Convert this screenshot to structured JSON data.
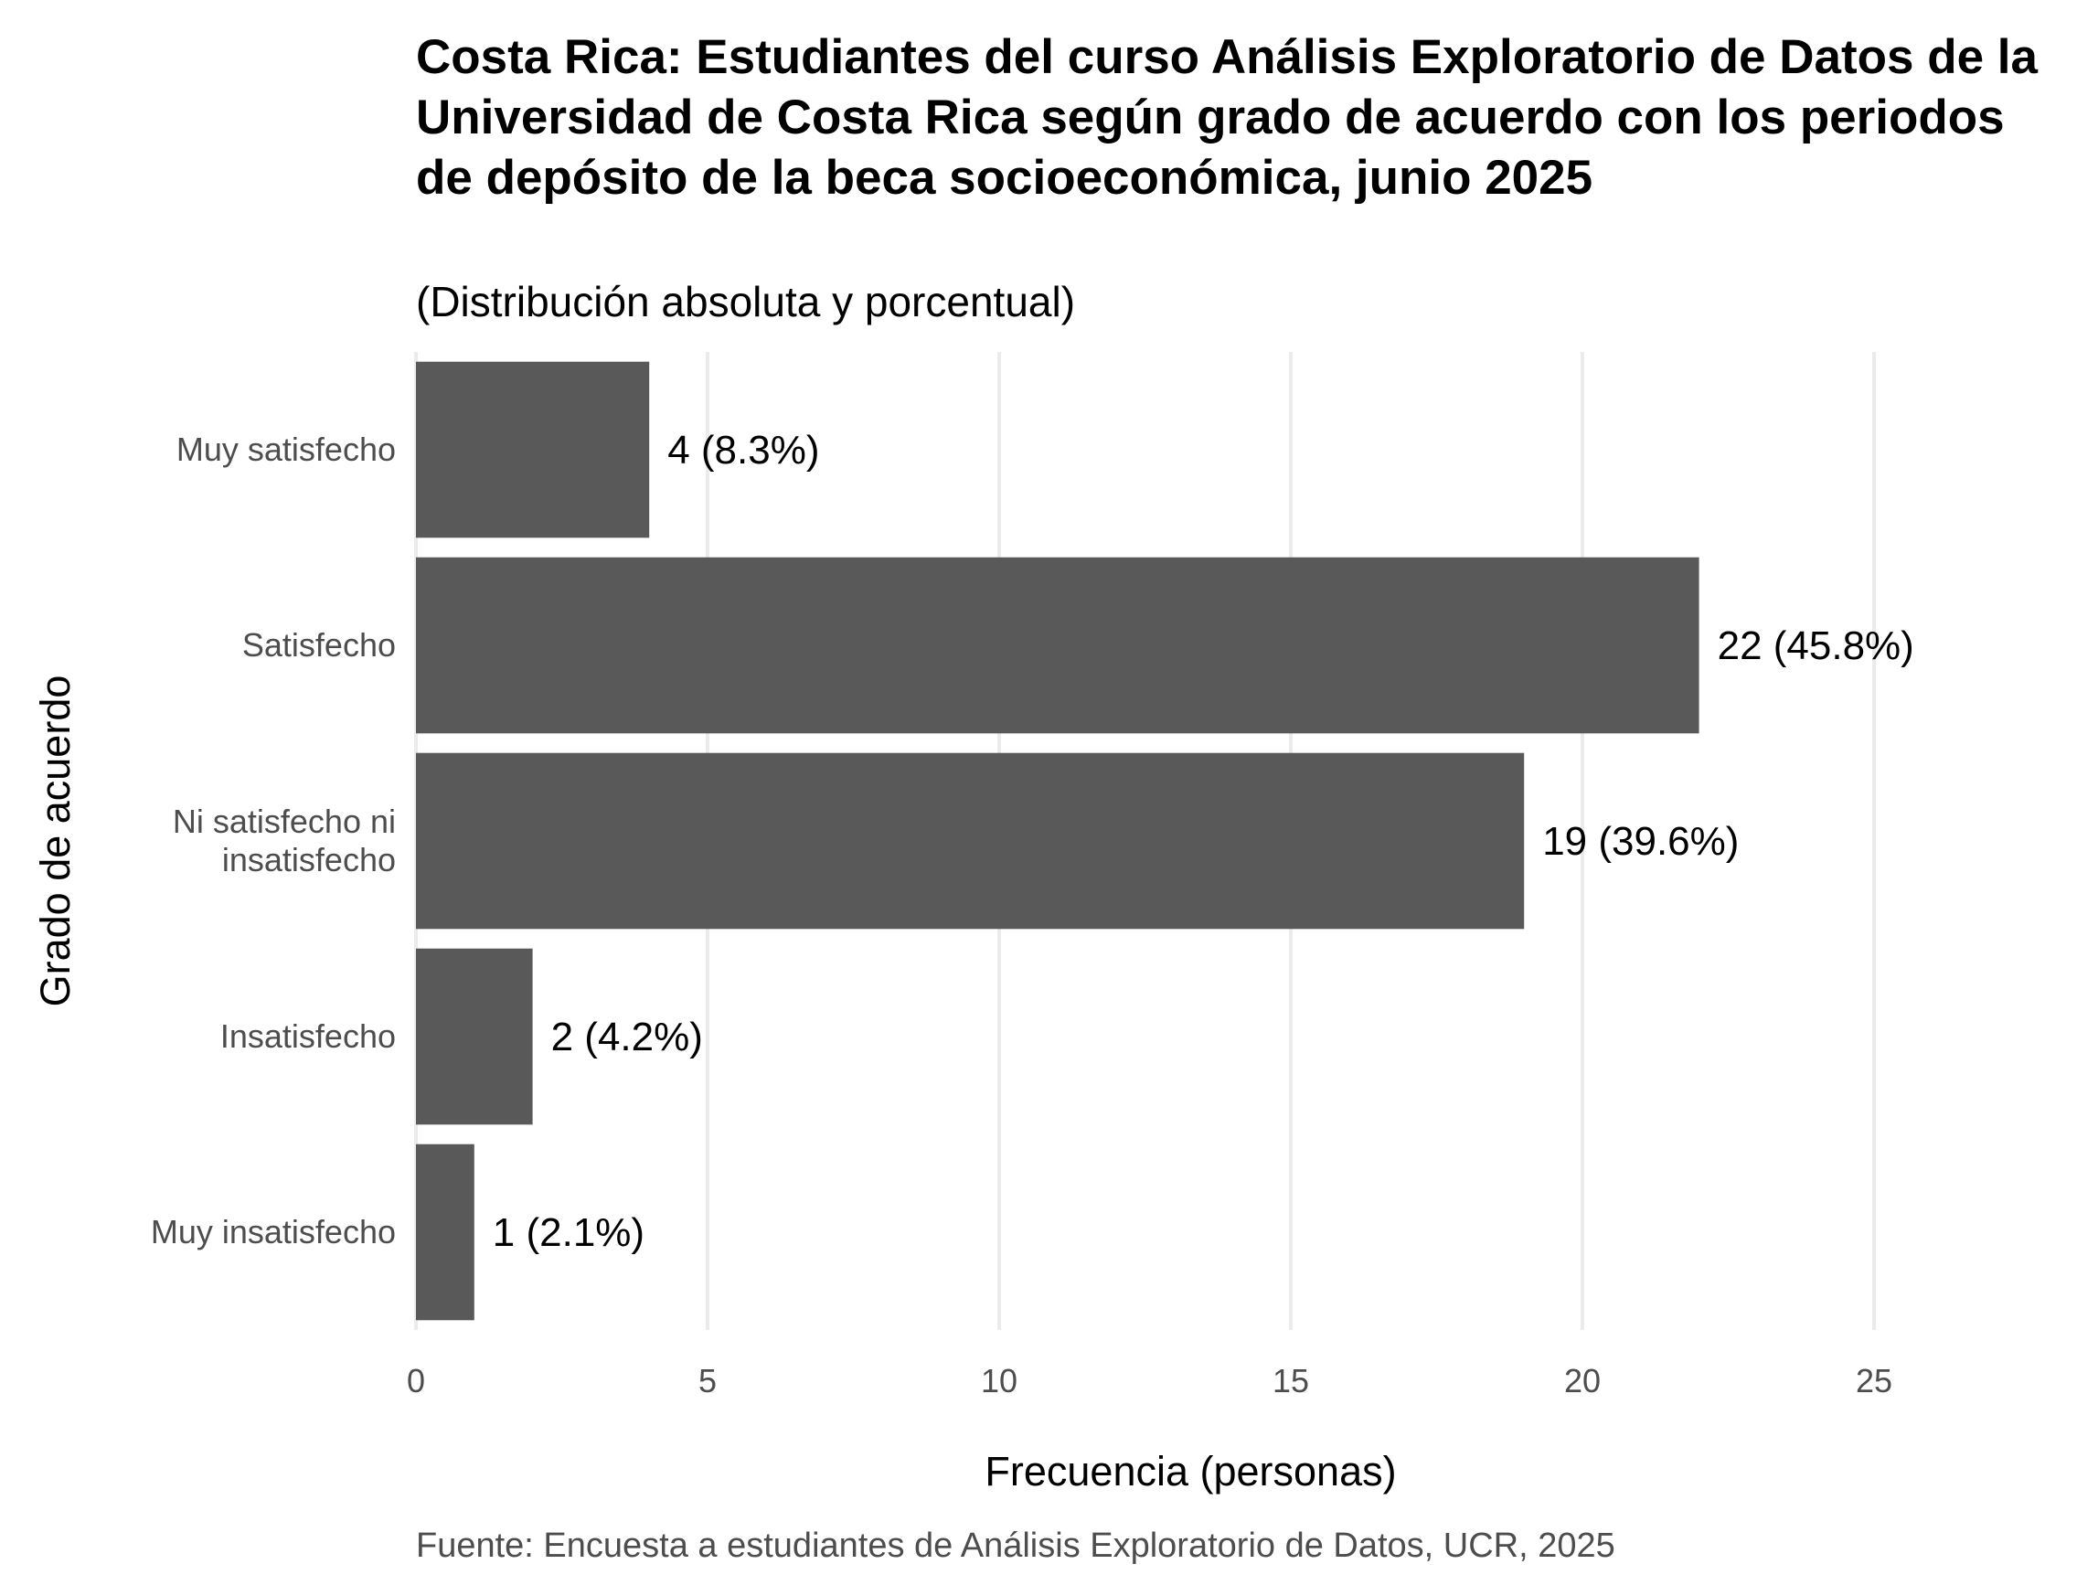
{
  "chart_data": {
    "type": "bar",
    "orientation": "horizontal",
    "title": "Costa Rica: Estudiantes del curso Análisis Exploratorio de Datos de la Universidad de Costa Rica según grado de acuerdo con los periodos de depósito de la beca socioeconómica, junio 2025",
    "subtitle": "(Distribución absoluta y porcentual)",
    "caption": "Fuente: Encuesta a estudiantes de Análisis Exploratorio de Datos, UCR, 2025",
    "xlabel": "Frecuencia (personas)",
    "ylabel": "Grado de acuerdo",
    "categories": [
      [
        "Muy satisfecho"
      ],
      [
        "Satisfecho"
      ],
      [
        "Ni satisfecho ni",
        "insatisfecho"
      ],
      [
        "Insatisfecho"
      ],
      [
        "Muy insatisfecho"
      ]
    ],
    "values": [
      4,
      22,
      19,
      2,
      1
    ],
    "data_labels": [
      "4 (8.3%)",
      "22 (45.8%)",
      "19 (39.6%)",
      "2 (4.2%)",
      "1 (2.1%)"
    ],
    "xlim": [
      0,
      25
    ],
    "x_ticks": [
      0,
      5,
      10,
      15,
      20,
      25
    ],
    "grid": true,
    "bar_color": "#595959",
    "grid_color": "#ebebeb"
  }
}
